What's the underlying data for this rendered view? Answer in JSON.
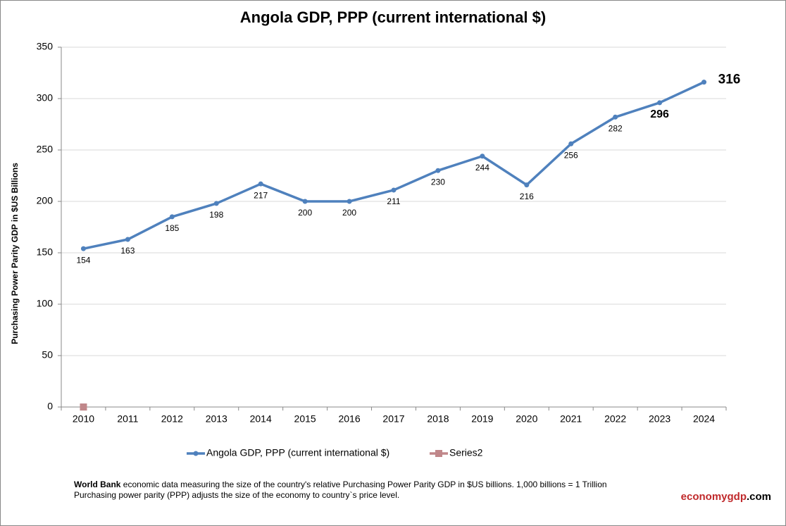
{
  "chart_data": {
    "type": "line",
    "title": "Angola GDP, PPP (current international $)",
    "y_label": "Purchasing Power Parity GDP in $US Billions",
    "categories": [
      "2010",
      "2011",
      "2012",
      "2013",
      "2014",
      "2015",
      "2016",
      "2017",
      "2018",
      "2019",
      "2020",
      "2021",
      "2022",
      "2023",
      "2024"
    ],
    "series": [
      {
        "name": "Angola GDP, PPP (current international $)",
        "color": "#4f81bd",
        "values": [
          154,
          163,
          185,
          198,
          217,
          200,
          200,
          211,
          230,
          244,
          216,
          256,
          282,
          296,
          316
        ]
      },
      {
        "name": "Series2",
        "color": "#c0878a",
        "values": [
          0,
          null,
          null,
          null,
          null,
          null,
          null,
          null,
          null,
          null,
          null,
          null,
          null,
          null,
          null
        ]
      }
    ],
    "ylim": [
      0,
      350
    ],
    "yticks": [
      0,
      50,
      100,
      150,
      200,
      250,
      300,
      350
    ],
    "grid": true,
    "legend": "bottom"
  },
  "footer": {
    "source": "World Bank",
    "line1": "economic data  measuring the size of the country's relative  Purchasing Power Parity GDP in $US billions. 1,000 billions = 1 Trillion",
    "line2": "Purchasing power parity (PPP) adjusts the size of the economy to country`s price level.",
    "brand": "economygdp",
    "brand_suffix": ".com"
  }
}
